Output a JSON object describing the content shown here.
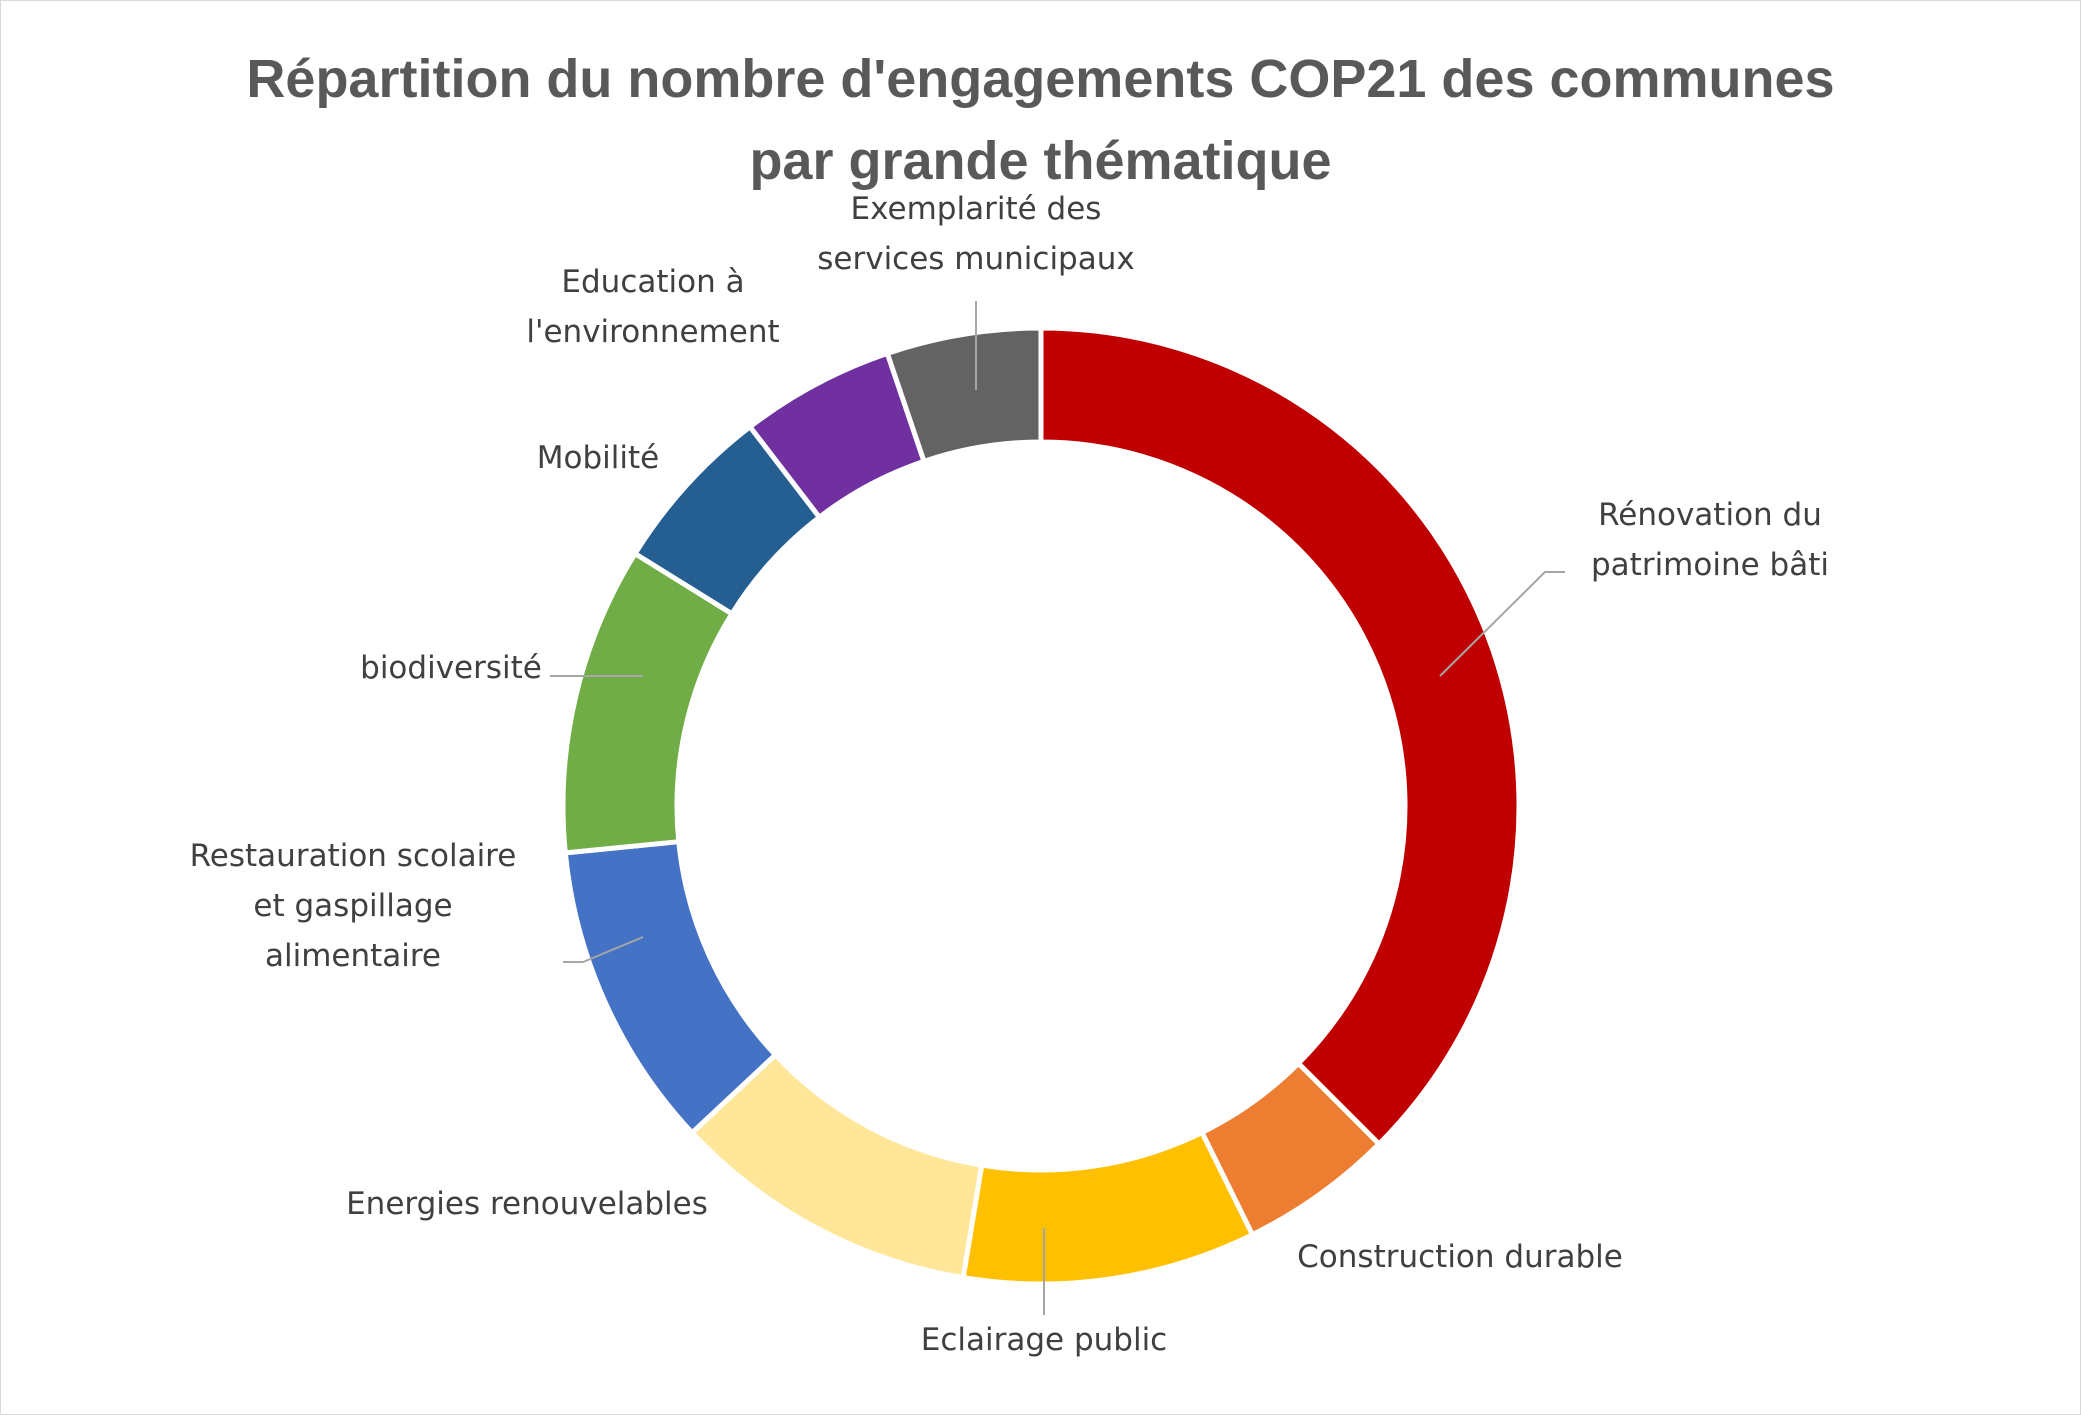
{
  "chart_data": {
    "type": "donut",
    "title_lines": [
      "Répartition du nombre d'engagements COP21 des communes",
      "par grande thématique"
    ],
    "colors": {
      "Rénovation du patrimoine bâti": "#c00000",
      "Construction durable": "#ed7d31",
      "Eclairage public": "#ffc000",
      "Energies renouvelables": "#ffe699",
      "Restauration scolaire et gaspillage alimentaire": "#4472c4",
      "biodiversité": "#70ad47",
      "Mobilité": "#255e91",
      "Education à l'environnement": "#7030a0",
      "Exemplarité des services municipaux": "#636363"
    },
    "categories": [
      "Rénovation du patrimoine bâti",
      "Construction durable",
      "Eclairage public",
      "Energies renouvelables",
      "Restauration scolaire et gaspillage alimentaire",
      "biodiversité",
      "Mobilité",
      "Education à l'environnement",
      "Exemplarité des services municipaux"
    ],
    "values": [
      36,
      5,
      9.5,
      10,
      10,
      10,
      5.5,
      5,
      5
    ],
    "label_lines": [
      [
        "Rénovation du",
        "patrimoine bâti"
      ],
      [
        "Construction durable"
      ],
      [
        "Eclairage public"
      ],
      [
        "Energies renouvelables"
      ],
      [
        "Restauration scolaire",
        "et gaspillage",
        "alimentaire"
      ],
      [
        "biodiversité"
      ],
      [
        "Mobilité"
      ],
      [
        "Education à",
        "l'environnement"
      ],
      [
        "Exemplarité des",
        "services municipaux"
      ]
    ]
  }
}
